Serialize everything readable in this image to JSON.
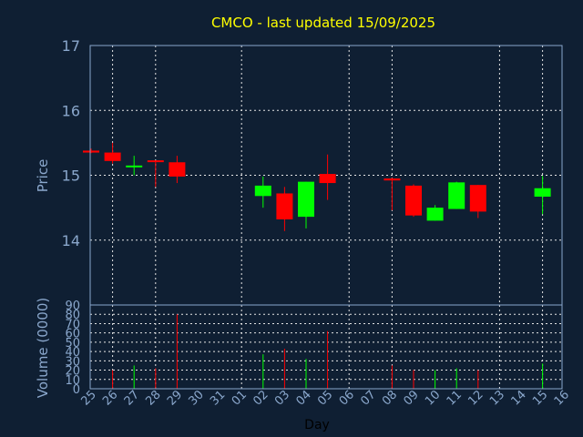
{
  "chart_data": {
    "type": "candlestick",
    "title": "CMCO - last updated 15/09/2025",
    "xlabel": "Day",
    "ylabel_price": "Price",
    "ylabel_volume": "Volume (0000)",
    "x_ticks": [
      "25",
      "26",
      "27",
      "28",
      "29",
      "30",
      "31",
      "01",
      "02",
      "03",
      "04",
      "05",
      "06",
      "07",
      "08",
      "09",
      "10",
      "11",
      "12",
      "13",
      "14",
      "15",
      "16"
    ],
    "price_ylim": [
      13,
      17
    ],
    "price_yticks": [
      14,
      15,
      16,
      17
    ],
    "volume_ylim": [
      0,
      90
    ],
    "volume_yticks": [
      0,
      10,
      20,
      30,
      40,
      50,
      60,
      70,
      80,
      90
    ],
    "colors": {
      "up": "#00ff00",
      "down": "#ff0000",
      "background": "#0f1f33",
      "title": "#ffff00",
      "axis_text": "#8aa7cc",
      "grid": "#e6e6e6"
    },
    "series": [
      {
        "day": "25",
        "open": 15.38,
        "high": 15.41,
        "low": 15.34,
        "close": 15.35,
        "volume": 0
      },
      {
        "day": "26",
        "open": 15.35,
        "high": 15.5,
        "low": 15.18,
        "close": 15.22,
        "volume": 20
      },
      {
        "day": "27",
        "open": 15.14,
        "high": 15.3,
        "low": 15.0,
        "close": 15.15,
        "volume": 25
      },
      {
        "day": "28",
        "open": 15.23,
        "high": 15.23,
        "low": 14.82,
        "close": 15.21,
        "volume": 22
      },
      {
        "day": "29",
        "open": 15.2,
        "high": 15.3,
        "low": 14.88,
        "close": 14.98,
        "volume": 80
      },
      {
        "day": "02",
        "open": 14.68,
        "high": 14.98,
        "low": 14.5,
        "close": 14.84,
        "volume": 37
      },
      {
        "day": "03",
        "open": 14.72,
        "high": 14.82,
        "low": 14.14,
        "close": 14.32,
        "volume": 43
      },
      {
        "day": "04",
        "open": 14.36,
        "high": 14.9,
        "low": 14.18,
        "close": 14.9,
        "volume": 32
      },
      {
        "day": "05",
        "open": 15.02,
        "high": 15.32,
        "low": 14.62,
        "close": 14.88,
        "volume": 62
      },
      {
        "day": "08",
        "open": 14.95,
        "high": 14.96,
        "low": 14.46,
        "close": 14.92,
        "volume": 25
      },
      {
        "day": "09",
        "open": 14.84,
        "high": 14.86,
        "low": 14.36,
        "close": 14.38,
        "volume": 20
      },
      {
        "day": "10",
        "open": 14.3,
        "high": 14.54,
        "low": 14.3,
        "close": 14.5,
        "volume": 20
      },
      {
        "day": "11",
        "open": 14.48,
        "high": 14.9,
        "low": 14.48,
        "close": 14.89,
        "volume": 22
      },
      {
        "day": "12",
        "open": 14.85,
        "high": 14.85,
        "low": 14.34,
        "close": 14.44,
        "volume": 20
      },
      {
        "day": "15",
        "open": 14.67,
        "high": 14.99,
        "low": 14.4,
        "close": 14.8,
        "volume": 27
      }
    ]
  }
}
